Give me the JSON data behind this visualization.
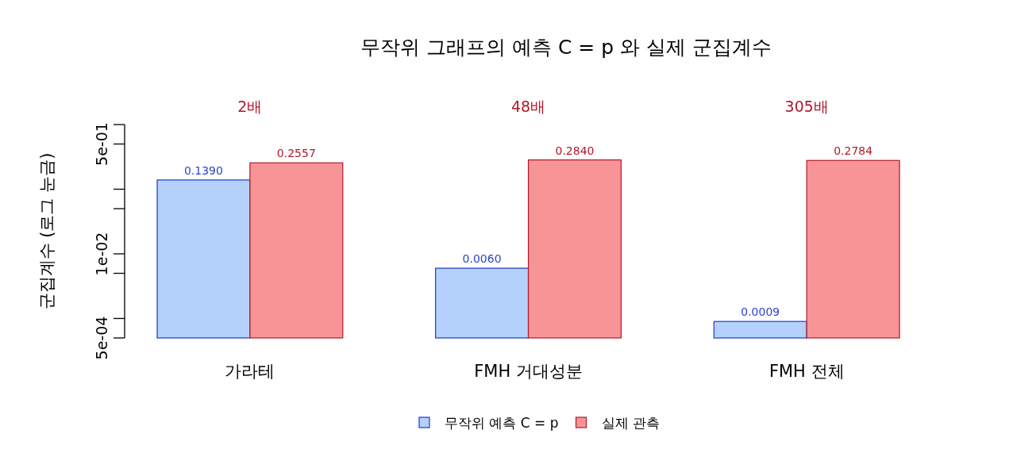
{
  "chart_data": {
    "type": "bar",
    "title": "무작위 그래프의 예측 C = p 와 실제 군집계수",
    "ylabel": "군집계수 (로그 눈금)",
    "categories": [
      "가라테",
      "FMH 거대성분",
      "FMH 전체"
    ],
    "series": [
      {
        "name": "무작위 예측 C = p",
        "color": "#b3d1fb",
        "values": [
          0.139,
          0.006,
          0.0009
        ],
        "value_labels": [
          "0.1390",
          "0.0060",
          "0.0009"
        ]
      },
      {
        "name": "실제 관측",
        "color": "#f79496",
        "values": [
          0.2557,
          0.284,
          0.2784
        ],
        "value_labels": [
          "0.2557",
          "0.2840",
          "0.2784"
        ]
      }
    ],
    "annotations": [
      "2배",
      "48배",
      "305배"
    ],
    "log": true,
    "ylim": [
      0.0005,
      1
    ],
    "yticks": [
      {
        "value": 0.0005,
        "label": "5e-04"
      },
      {
        "value": 0.001,
        "label": null
      },
      {
        "value": 0.005,
        "label": null
      },
      {
        "value": 0.01,
        "label": "1e-02"
      },
      {
        "value": 0.05,
        "label": null
      },
      {
        "value": 0.1,
        "label": null
      },
      {
        "value": 0.5,
        "label": "5e-01"
      },
      {
        "value": 1,
        "label": null
      }
    ],
    "grid": false,
    "legend": "bottom"
  }
}
